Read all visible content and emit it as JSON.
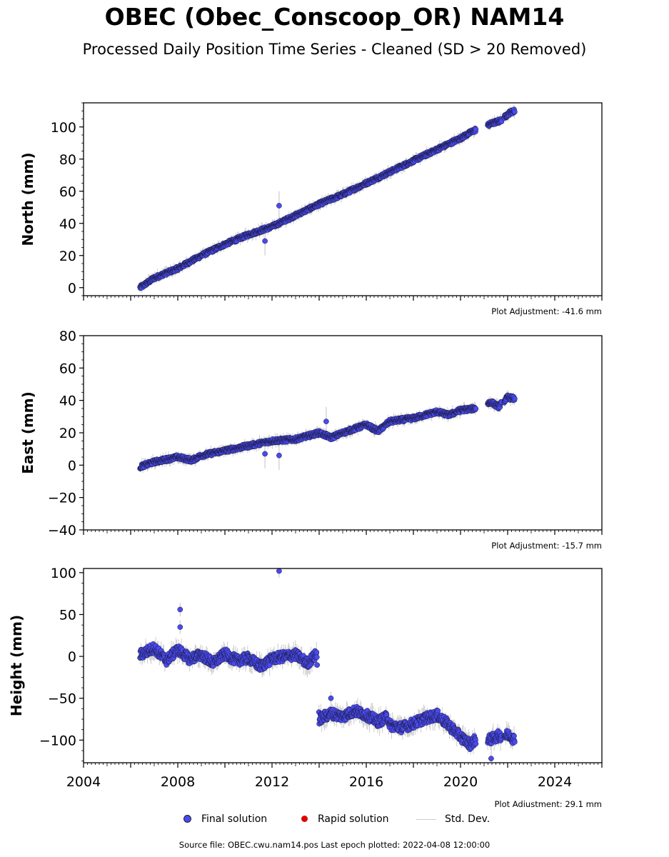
{
  "header": {
    "title": "OBEC (Obec_Conscoop_OR) NAM14",
    "subtitle": "Processed Daily Position Time Series - Cleaned (SD > 20 Removed)"
  },
  "chart_data": [
    {
      "type": "scatter",
      "ylabel": "North (mm)",
      "xlim": [
        2004,
        2026
      ],
      "ylim": [
        -5,
        115
      ],
      "yticks": [
        0,
        20,
        40,
        60,
        80,
        100
      ],
      "adjustment": "Plot Adjustment: -41.6 mm",
      "series": [
        {
          "name": "Final solution",
          "x": [
            2006.4,
            2007.0,
            2008.0,
            2009.0,
            2010.0,
            2011.0,
            2012.0,
            2013.0,
            2014.0,
            2015.0,
            2016.0,
            2017.0,
            2018.0,
            2019.0,
            2020.0,
            2020.6,
            2021.3,
            2021.7,
            2022.1,
            2022.3
          ],
          "y": [
            0,
            6,
            12,
            20,
            27,
            33,
            38,
            45,
            52,
            58,
            65,
            72,
            79,
            86,
            93,
            98,
            102,
            104,
            109,
            110
          ]
        }
      ],
      "outliers": {
        "x": [
          2011.7,
          2012.3
        ],
        "y": [
          29,
          51
        ]
      }
    },
    {
      "type": "scatter",
      "ylabel": "East (mm)",
      "xlim": [
        2004,
        2026
      ],
      "ylim": [
        -40,
        80
      ],
      "yticks": [
        -40,
        -20,
        0,
        20,
        40,
        60,
        80
      ],
      "adjustment": "Plot Adjustment: -15.7 mm",
      "series": [
        {
          "name": "Final solution",
          "x": [
            2006.4,
            2007.0,
            2008.0,
            2008.6,
            2009.0,
            2010.0,
            2011.0,
            2012.0,
            2013.0,
            2014.0,
            2014.5,
            2015.0,
            2016.0,
            2016.5,
            2017.0,
            2018.0,
            2019.0,
            2019.5,
            2020.0,
            2020.6,
            2021.3,
            2021.6,
            2022.0,
            2022.3
          ],
          "y": [
            -1,
            2,
            5,
            3,
            6,
            9,
            12,
            15,
            16,
            20,
            17,
            20,
            25,
            21,
            27,
            29,
            33,
            31,
            34,
            35,
            39,
            36,
            42,
            41
          ]
        }
      ],
      "outliers": {
        "x": [
          2011.7,
          2012.3,
          2014.3
        ],
        "y": [
          7,
          6,
          27
        ]
      }
    },
    {
      "type": "scatter",
      "ylabel": "Height (mm)",
      "xlim": [
        2004,
        2026
      ],
      "ylim": [
        -127,
        105
      ],
      "yticks": [
        -100,
        -50,
        0,
        50,
        100
      ],
      "xticks": [
        2004,
        2008,
        2012,
        2016,
        2020,
        2024
      ],
      "adjustment": "Plot Adjustment: 29.1 mm",
      "series": [
        {
          "name": "Final solution",
          "x": [
            2006.4,
            2007.0,
            2007.5,
            2008.0,
            2008.5,
            2009.0,
            2009.5,
            2010.0,
            2010.5,
            2011.0,
            2011.5,
            2012.0,
            2012.5,
            2013.0,
            2013.5,
            2013.9,
            2014.0,
            2014.5,
            2015.0,
            2015.5,
            2016.0,
            2016.5,
            2016.9,
            2017.0,
            2017.5,
            2018.0,
            2018.5,
            2019.0,
            2019.5,
            2020.0,
            2020.4,
            2020.7,
            2021.2,
            2021.6,
            2022.1,
            2022.3
          ],
          "y": [
            2,
            10,
            -5,
            8,
            -3,
            2,
            -8,
            3,
            -5,
            -2,
            -12,
            -3,
            0,
            2,
            -8,
            3,
            -75,
            -68,
            -72,
            -65,
            -70,
            -78,
            -72,
            -82,
            -85,
            -80,
            -74,
            -70,
            -82,
            -96,
            -105,
            -98,
            -100,
            -95,
            -94,
            -100
          ]
        }
      ],
      "outliers": {
        "x": [
          2008.1,
          2008.1,
          2012.3,
          2014.5,
          2021.3
        ],
        "y": [
          56,
          35,
          102,
          -50,
          -122
        ]
      }
    }
  ],
  "legend": {
    "final": "Final solution",
    "rapid": "Rapid solution",
    "std": "Std. Dev.",
    "final_color": "#4a4af0",
    "rapid_color": "#e00000",
    "std_color": "#cccccc"
  },
  "footer": {
    "source": "Source file: OBEC.cwu.nam14.pos  Last epoch plotted: 2022-04-08 12:00:00"
  }
}
